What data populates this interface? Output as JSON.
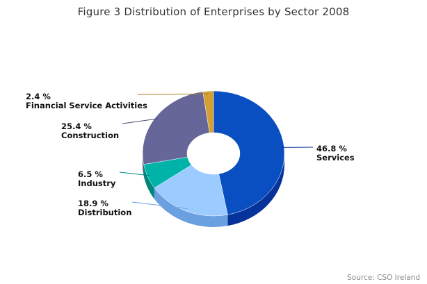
{
  "title": "Figure 3 Distribution of Enterprises by Sector 2008",
  "source": "Source: CSO Ireland",
  "chart_data": {
    "type": "pie",
    "variant": "3d-donut",
    "title": "Figure 3 Distribution of Enterprises by Sector 2008",
    "legend": "none",
    "slices": [
      {
        "label": "Services",
        "value": 46.8,
        "value_label": "46.8 %",
        "color": "#0a4fc2",
        "side": "#06339b"
      },
      {
        "label": "Distribution",
        "value": 18.9,
        "value_label": "18.9 %",
        "color": "#9ccbff",
        "side": "#6a9fe0"
      },
      {
        "label": "Industry",
        "value": 6.5,
        "value_label": "6.5 %",
        "color": "#00b3a9",
        "side": "#00857d"
      },
      {
        "label": "Construction",
        "value": 25.4,
        "value_label": "25.4 %",
        "color": "#666699",
        "side": "#4a4a78"
      },
      {
        "label": "Financial Service Activities",
        "value": 2.4,
        "value_label": "2.4 %",
        "color": "#d4a033",
        "side": "#a77b1f"
      }
    ]
  }
}
